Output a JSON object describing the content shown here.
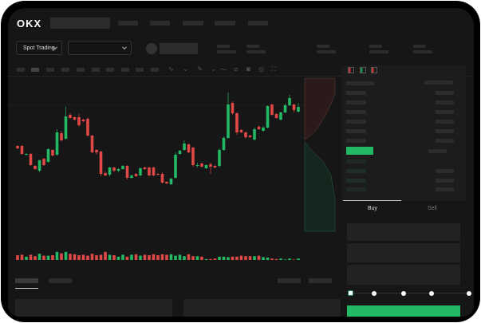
{
  "header": {
    "logo": "OKX"
  },
  "market_selector": {
    "label": "Spot Trading",
    "pair_value": ""
  },
  "order_form": {
    "tabs": [
      "Buy",
      "Sell"
    ],
    "active_tab": "Buy",
    "leverage_steps": 5,
    "selected_step": 0
  },
  "colors": {
    "up": "#22b864",
    "down": "#e04848",
    "accent": "#22b864",
    "background": "#161616"
  },
  "toolbar_icons": [
    "indicator-icon",
    "draw-icon",
    "line-icon",
    "ruler-icon",
    "camera-icon",
    "settings-icon",
    "fullscreen-icon"
  ],
  "orderbook_view_icons": [
    "both-sides-icon",
    "bids-only-icon",
    "asks-only-icon"
  ],
  "chart_data": {
    "type": "candlestick",
    "title": "",
    "xlabel": "",
    "ylabel": "",
    "grid": true,
    "candles_ohlc": [
      [
        68,
        65,
        69,
        64
      ],
      [
        68,
        58,
        69,
        57
      ],
      [
        57,
        58,
        59,
        56
      ],
      [
        58,
        44,
        59,
        43
      ],
      [
        43,
        39,
        44,
        38
      ],
      [
        37,
        50,
        51,
        35
      ],
      [
        52,
        44,
        53,
        43
      ],
      [
        48,
        64,
        65,
        47
      ],
      [
        63,
        56,
        64,
        55
      ],
      [
        57,
        85,
        89,
        56
      ],
      [
        84,
        75,
        87,
        74
      ],
      [
        77,
        105,
        117,
        76
      ],
      [
        107,
        103,
        109,
        102
      ],
      [
        104,
        101,
        105,
        100
      ],
      [
        104,
        94,
        108,
        92
      ],
      [
        101,
        99,
        102,
        98
      ],
      [
        102,
        81,
        104,
        80
      ],
      [
        81,
        60,
        82,
        59
      ],
      [
        63,
        60,
        64,
        57
      ],
      [
        61,
        33,
        62,
        30
      ],
      [
        34,
        31,
        36,
        30
      ],
      [
        32,
        41,
        42,
        30
      ],
      [
        41,
        37,
        42,
        35
      ],
      [
        37,
        39,
        40,
        35
      ],
      [
        39,
        43,
        44,
        38
      ],
      [
        43,
        28,
        44,
        26
      ],
      [
        28,
        31,
        32,
        27
      ],
      [
        33,
        30,
        34,
        29
      ],
      [
        31,
        40,
        41,
        30
      ],
      [
        41,
        39,
        42,
        38
      ],
      [
        41,
        31,
        42,
        30
      ],
      [
        41,
        31,
        42,
        30
      ],
      [
        33,
        32,
        34,
        31
      ],
      [
        33,
        22,
        35,
        21
      ],
      [
        23,
        21,
        24,
        20
      ],
      [
        20,
        27,
        28,
        19
      ],
      [
        28,
        57,
        60,
        27
      ],
      [
        58,
        62,
        63,
        57
      ],
      [
        63,
        71,
        75,
        62
      ],
      [
        70,
        60,
        71,
        59
      ],
      [
        66,
        44,
        67,
        42
      ],
      [
        43,
        44,
        47,
        41
      ],
      [
        46,
        42,
        47,
        41
      ],
      [
        40,
        44,
        45,
        39
      ],
      [
        45,
        42,
        47,
        33
      ],
      [
        43,
        41,
        44,
        40
      ],
      [
        43,
        63,
        65,
        41
      ],
      [
        63,
        78,
        80,
        62
      ],
      [
        78,
        120,
        135,
        77
      ],
      [
        122,
        109,
        124,
        107
      ],
      [
        109,
        85,
        110,
        82
      ],
      [
        88,
        85,
        89,
        84
      ],
      [
        85,
        79,
        86,
        77
      ],
      [
        81,
        79,
        82,
        78
      ],
      [
        76,
        89,
        91,
        75
      ],
      [
        92,
        89,
        94,
        88
      ],
      [
        87,
        91,
        93,
        86
      ],
      [
        91,
        118,
        119,
        90
      ],
      [
        120,
        107,
        121,
        106
      ],
      [
        108,
        103,
        109,
        102
      ],
      [
        101,
        110,
        111,
        100
      ],
      [
        110,
        119,
        121,
        109
      ],
      [
        119,
        128,
        132,
        118
      ],
      [
        120,
        113,
        121,
        110
      ],
      [
        111,
        117,
        122,
        110
      ]
    ],
    "volumes": [
      10,
      11,
      7,
      11,
      8,
      13,
      9,
      9,
      10,
      17,
      14,
      17,
      13,
      12,
      10,
      11,
      9,
      13,
      10,
      11,
      17,
      11,
      10,
      7,
      11,
      7,
      11,
      12,
      9,
      11,
      10,
      12,
      10,
      12,
      11,
      12,
      9,
      11,
      8,
      12,
      8,
      8,
      7,
      2,
      2,
      3,
      7,
      7,
      6,
      7,
      7,
      9,
      8,
      8,
      8,
      9,
      6,
      5,
      3,
      2,
      3,
      1,
      3,
      1,
      3
    ]
  }
}
